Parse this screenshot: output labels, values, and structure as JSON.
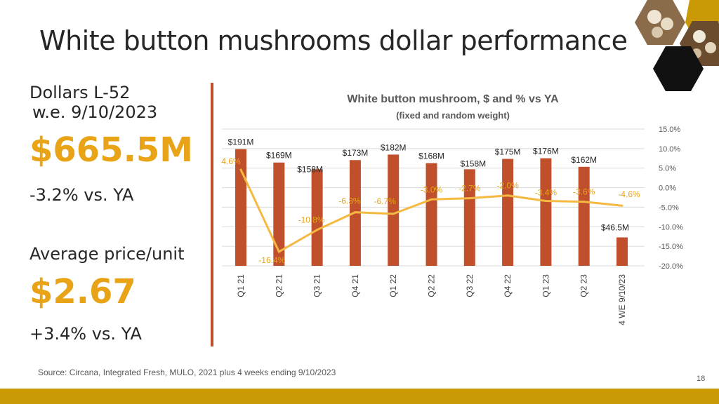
{
  "title": "White button mushrooms dollar performance",
  "kpis": {
    "dollars_label_1": "Dollars L-52",
    "dollars_label_2": "w.e. 9/10/2023",
    "dollars_value": "$665.5M",
    "dollars_change": "-3.2% vs. YA",
    "price_label": "Average price/unit",
    "price_value": "$2.67",
    "price_change": "+3.4% vs. YA"
  },
  "source": "Source: Circana, Integrated Fresh, MULO, 2021 plus 4 weeks ending 9/10/2023",
  "page_number": "18",
  "colors": {
    "bar": "#C0502B",
    "line": "#F5B841",
    "accent": "#E8A317",
    "footer": "#C99A06"
  },
  "chart_data": {
    "type": "bar",
    "title": "White button mushroom, $ and % vs YA",
    "subtitle": "(fixed and random weight)",
    "categories": [
      "Q1 21",
      "Q2 21",
      "Q3 21",
      "Q4 21",
      "Q1 22",
      "Q2 22",
      "Q3 22",
      "Q4 22",
      "Q1 23",
      "Q2 23",
      "4 WE 9/10/23"
    ],
    "series": [
      {
        "name": "Dollars ($M)",
        "type": "bar",
        "axis": "left",
        "values": [
          191,
          169,
          158,
          173,
          182,
          168,
          158,
          175,
          176,
          162,
          46.5
        ],
        "labels": [
          "$191M",
          "$169M",
          "$158M",
          "$173M",
          "$182M",
          "$168M",
          "$158M",
          "$175M",
          "$176M",
          "$162M",
          "$46.5M"
        ]
      },
      {
        "name": "% vs YA",
        "type": "line",
        "axis": "right",
        "values": [
          4.6,
          -16.4,
          -10.8,
          -6.3,
          -6.7,
          -3.0,
          -2.7,
          -2.0,
          -3.4,
          -3.6,
          -4.6
        ],
        "labels": [
          "4.6%",
          "-16.4%",
          "-10.8%",
          "-6.3%",
          "-6.7%",
          "-3.0%",
          "-2.7%",
          "-2.0%",
          "-3.4%",
          "-3.6%",
          "-4.6%"
        ]
      }
    ],
    "y_right": {
      "min": -20,
      "max": 15,
      "step": 5,
      "tick_labels": [
        "-20.0%",
        "-15.0%",
        "-10.0%",
        "-5.0%",
        "0.0%",
        "5.0%",
        "10.0%",
        "15.0%"
      ]
    },
    "y_left": {
      "min": 0,
      "max": 210
    }
  }
}
